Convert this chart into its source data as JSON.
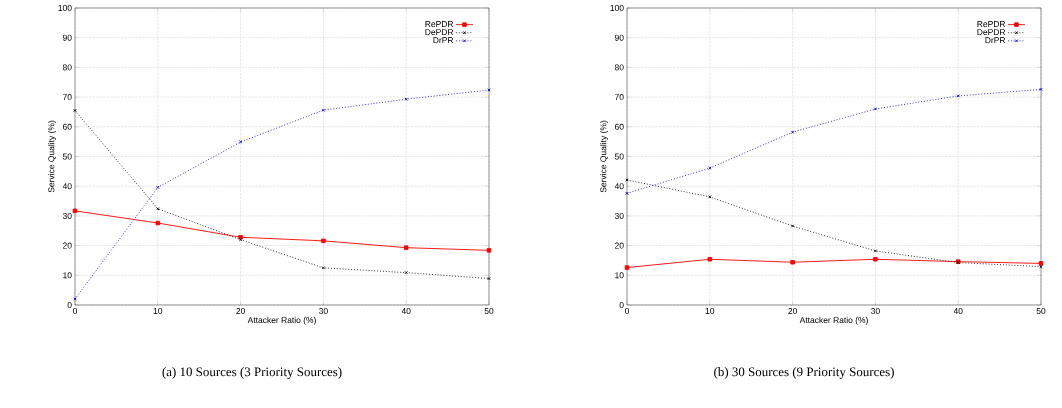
{
  "chart_data": [
    {
      "type": "line",
      "title": "(a) 10 Sources (3 Priority Sources)",
      "xlabel": "Attacker Ratio (%)",
      "ylabel": "Service Quality (%)",
      "x": [
        0,
        10,
        20,
        30,
        40,
        50
      ],
      "xlim": [
        0,
        50
      ],
      "ylim": [
        0,
        100
      ],
      "xticks": [
        0,
        10,
        20,
        30,
        40,
        50
      ],
      "yticks": [
        0,
        10,
        20,
        30,
        40,
        50,
        60,
        70,
        80,
        90,
        100
      ],
      "grid": true,
      "legend": "top right",
      "series": [
        {
          "name": "RePDR",
          "color": "#ff0000",
          "marker": "square",
          "line_style": "solid",
          "values": [
            31.7,
            27.6,
            22.8,
            21.6,
            19.3,
            18.4
          ]
        },
        {
          "name": "DePDR",
          "color": "#000000",
          "marker": "cross",
          "line_style": "dotted",
          "values": [
            65.5,
            32.4,
            22.0,
            12.5,
            10.9,
            8.9
          ]
        },
        {
          "name": "DrPR",
          "color": "#0000ff",
          "marker": "cross",
          "line_style": "dotted",
          "values": [
            2.0,
            39.6,
            54.9,
            65.6,
            69.3,
            72.4
          ]
        }
      ]
    },
    {
      "type": "line",
      "title": "(b) 30 Sources (9 Priority Sources)",
      "xlabel": "Attacker Ratio (%)",
      "ylabel": "Service Quality (%)",
      "x": [
        0,
        10,
        20,
        30,
        40,
        50
      ],
      "xlim": [
        0,
        50
      ],
      "ylim": [
        0,
        100
      ],
      "xticks": [
        0,
        10,
        20,
        30,
        40,
        50
      ],
      "yticks": [
        0,
        10,
        20,
        30,
        40,
        50,
        60,
        70,
        80,
        90,
        100
      ],
      "grid": true,
      "legend": "top right",
      "series": [
        {
          "name": "RePDR",
          "color": "#ff0000",
          "marker": "square",
          "line_style": "solid",
          "values": [
            12.6,
            15.4,
            14.4,
            15.4,
            14.6,
            14.0
          ]
        },
        {
          "name": "DePDR",
          "color": "#000000",
          "marker": "cross",
          "line_style": "dotted",
          "values": [
            42.1,
            36.4,
            26.6,
            18.2,
            14.3,
            12.9
          ]
        },
        {
          "name": "DrPR",
          "color": "#0000ff",
          "marker": "cross",
          "line_style": "dotted",
          "values": [
            37.6,
            46.1,
            58.2,
            66.0,
            70.4,
            72.6
          ]
        }
      ]
    }
  ]
}
